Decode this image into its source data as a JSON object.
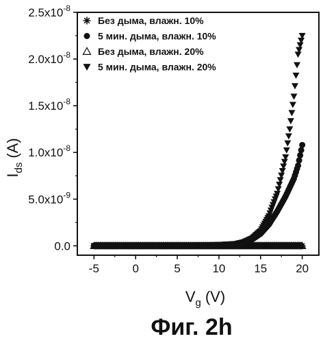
{
  "chart_data": {
    "type": "scatter",
    "title": "",
    "xlabel_main": "V",
    "xlabel_sub": "g",
    "xlabel_unit": "(V)",
    "ylabel_main": "I",
    "ylabel_sub": "ds",
    "ylabel_unit": "(A)",
    "xlim": [
      -7,
      22
    ],
    "ylim": [
      -1e-09,
      2.5e-08
    ],
    "x_ticks": [
      -5,
      0,
      5,
      10,
      15,
      20
    ],
    "x_tick_labels": [
      "-5",
      "0",
      "5",
      "10",
      "15",
      "20"
    ],
    "y_ticks": [
      0,
      5e-09,
      1e-08,
      1.5e-08,
      2e-08,
      2.5e-08
    ],
    "y_tick_labels": [
      {
        "mantissa": "0.0",
        "exponent": ""
      },
      {
        "mantissa": "5.0x10",
        "exponent": "-9"
      },
      {
        "mantissa": "1.0x10",
        "exponent": "-8"
      },
      {
        "mantissa": "1.5x10",
        "exponent": "-8"
      },
      {
        "mantissa": "2.0x10",
        "exponent": "-8"
      },
      {
        "mantissa": "2.5x10",
        "exponent": "-8"
      }
    ],
    "grid": false,
    "legend_position": "top-left",
    "series": [
      {
        "name": "Без дыма, влажн. 10%",
        "marker": "asterisk",
        "x": [
          -5,
          -2.5,
          0,
          2.5,
          5,
          7.5,
          10,
          12.5,
          15,
          17.5,
          20
        ],
        "y": [
          0,
          0,
          0,
          0,
          0,
          0,
          0,
          0,
          0,
          0,
          0
        ]
      },
      {
        "name": "5 мин. дыма, влажн. 10%",
        "marker": "circle",
        "x": [
          -5,
          0,
          5,
          10,
          12,
          13,
          14,
          15,
          16,
          17,
          18,
          19,
          19.5,
          20
        ],
        "y": [
          0,
          0,
          0,
          1e-10,
          2e-10,
          4e-10,
          7e-10,
          1.3e-09,
          2.3e-09,
          3.7e-09,
          5.3e-09,
          7.2e-09,
          8.6e-09,
          1.08e-08
        ]
      },
      {
        "name": "Без дыма, влажн. 20%",
        "marker": "triangle-up",
        "x": [
          -5,
          0,
          5,
          10,
          15,
          20
        ],
        "y": [
          0,
          0,
          0,
          0,
          0,
          0
        ]
      },
      {
        "name": "5 мин. дыма, влажн. 20%",
        "marker": "triangle-down",
        "x": [
          -5,
          0,
          5,
          10,
          12,
          13,
          14,
          15,
          16,
          17,
          18,
          18.5,
          19,
          19.5,
          20
        ],
        "y": [
          0,
          0,
          0,
          1e-10,
          2e-10,
          4e-10,
          8e-10,
          1.6e-09,
          3.2e-09,
          5.6e-09,
          9.5e-09,
          1.25e-08,
          1.6e-08,
          2.05e-08,
          2.25e-08
        ]
      }
    ]
  },
  "caption": "Фиг. 2h"
}
